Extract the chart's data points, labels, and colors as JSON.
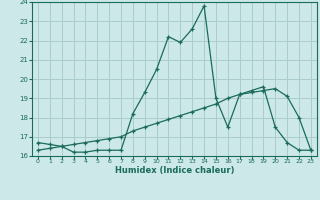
{
  "title": "",
  "xlabel": "Humidex (Indice chaleur)",
  "ylabel": "",
  "background_color": "#cce8e8",
  "grid_color": "#aacccc",
  "line_color": "#1a6b5a",
  "xlim": [
    -0.5,
    23.5
  ],
  "ylim": [
    16,
    24
  ],
  "yticks": [
    16,
    17,
    18,
    19,
    20,
    21,
    22,
    23,
    24
  ],
  "xticks": [
    0,
    1,
    2,
    3,
    4,
    5,
    6,
    7,
    8,
    9,
    10,
    11,
    12,
    13,
    14,
    15,
    16,
    17,
    18,
    19,
    20,
    21,
    22,
    23
  ],
  "line1_x": [
    0,
    1,
    2,
    3,
    4,
    5,
    6,
    7,
    8,
    9,
    10,
    11,
    12,
    13,
    14,
    15,
    16,
    17,
    18,
    19,
    20,
    21,
    22,
    23
  ],
  "line1_y": [
    16.7,
    16.6,
    16.5,
    16.2,
    16.2,
    16.3,
    16.3,
    16.3,
    18.2,
    19.3,
    20.5,
    22.2,
    21.9,
    22.6,
    23.8,
    19.0,
    17.5,
    19.2,
    19.4,
    19.6,
    17.5,
    16.7,
    16.3,
    16.3
  ],
  "line2_x": [
    0,
    1,
    2,
    3,
    4,
    5,
    6,
    7,
    8,
    9,
    10,
    11,
    12,
    13,
    14,
    15,
    16,
    17,
    18,
    19,
    20,
    21,
    22,
    23
  ],
  "line2_y": [
    16.3,
    16.4,
    16.5,
    16.6,
    16.7,
    16.8,
    16.9,
    17.0,
    17.3,
    17.5,
    17.7,
    17.9,
    18.1,
    18.3,
    18.5,
    18.7,
    19.0,
    19.2,
    19.3,
    19.4,
    19.5,
    19.1,
    18.0,
    16.3
  ]
}
